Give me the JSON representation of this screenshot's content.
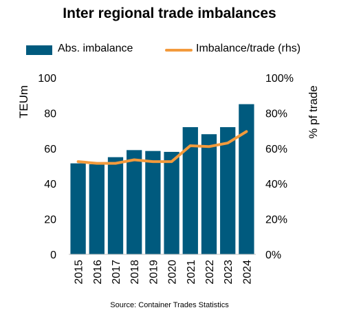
{
  "chart_data": {
    "type": "bar",
    "title": "Inter regional trade imbalances",
    "categories": [
      "2015",
      "2016",
      "2017",
      "2018",
      "2019",
      "2020",
      "2021",
      "2022",
      "2023",
      "2024"
    ],
    "series": [
      {
        "name": "Abs. imbalance",
        "type": "bar",
        "axis": "left",
        "color": "#005a7e",
        "values": [
          51.5,
          51,
          55,
          59,
          58.5,
          58,
          72,
          68,
          72,
          85
        ]
      },
      {
        "name": "Imbalance/trade (rhs)",
        "type": "line",
        "axis": "right",
        "color": "#f39a3c",
        "values": [
          52.5,
          51.5,
          51.5,
          53.5,
          52.5,
          52.5,
          61.5,
          61,
          63,
          69.5
        ]
      }
    ],
    "ylabel": "TEUm",
    "ylim": [
      0,
      100
    ],
    "yticks": [
      "0",
      "20",
      "40",
      "60",
      "80",
      "100"
    ],
    "y2label": "% pf trade",
    "y2lim": [
      0,
      100
    ],
    "y2ticks": [
      "0%",
      "20%",
      "40%",
      "60%",
      "80%",
      "100%"
    ],
    "legend": "top",
    "grid": false,
    "source": "Source: Container Trades Statistics"
  }
}
